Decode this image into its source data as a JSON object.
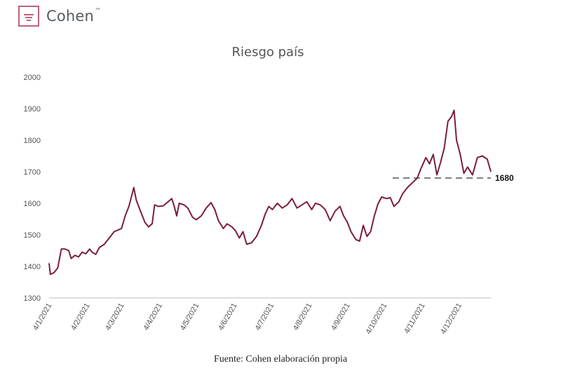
{
  "brand": {
    "name": "Cohen",
    "trademark": "™"
  },
  "colors": {
    "line": "#7b1e3a",
    "reference": "#7f7f7f",
    "axis_text": "#555555",
    "logo": "#c0617a"
  },
  "footer": {
    "source": "Fuente: Cohen elaboración propia"
  },
  "chart_data": {
    "type": "line",
    "title": "Riesgo país",
    "xlabel": "",
    "ylabel": "",
    "ylim": [
      1300,
      2000
    ],
    "yticks": [
      1300,
      1400,
      1500,
      1600,
      1700,
      1800,
      1900,
      2000
    ],
    "xlim": [
      "2021-01-04",
      "2021-12-30"
    ],
    "xticks": [
      {
        "date": "2021-01-04",
        "label": "4/1/2021"
      },
      {
        "date": "2021-02-04",
        "label": "4/2/2021"
      },
      {
        "date": "2021-03-04",
        "label": "4/3/2021"
      },
      {
        "date": "2021-04-04",
        "label": "4/4/2021"
      },
      {
        "date": "2021-05-04",
        "label": "4/5/2021"
      },
      {
        "date": "2021-06-04",
        "label": "4/6/2021"
      },
      {
        "date": "2021-07-04",
        "label": "4/7/2021"
      },
      {
        "date": "2021-08-04",
        "label": "4/8/2021"
      },
      {
        "date": "2021-09-04",
        "label": "4/9/2021"
      },
      {
        "date": "2021-10-04",
        "label": "4/10/2021"
      },
      {
        "date": "2021-11-04",
        "label": "4/11/2021"
      },
      {
        "date": "2021-12-04",
        "label": "4/12/2021"
      }
    ],
    "grid": false,
    "reference_line": {
      "value": 1680,
      "label": "1680",
      "from": "2021-10-11",
      "to": "2021-12-30",
      "style": "dashed"
    },
    "series": [
      {
        "points": [
          [
            "2021-01-04",
            1410
          ],
          [
            "2021-01-05",
            1375
          ],
          [
            "2021-01-08",
            1380
          ],
          [
            "2021-01-11",
            1395
          ],
          [
            "2021-01-14",
            1455
          ],
          [
            "2021-01-17",
            1455
          ],
          [
            "2021-01-20",
            1450
          ],
          [
            "2021-01-22",
            1425
          ],
          [
            "2021-01-25",
            1435
          ],
          [
            "2021-01-28",
            1430
          ],
          [
            "2021-01-31",
            1445
          ],
          [
            "2021-02-03",
            1440
          ],
          [
            "2021-02-06",
            1455
          ],
          [
            "2021-02-08",
            1445
          ],
          [
            "2021-02-11",
            1438
          ],
          [
            "2021-02-14",
            1460
          ],
          [
            "2021-02-18",
            1470
          ],
          [
            "2021-02-22",
            1490
          ],
          [
            "2021-02-26",
            1510
          ],
          [
            "2021-03-01",
            1515
          ],
          [
            "2021-03-04",
            1520
          ],
          [
            "2021-03-07",
            1560
          ],
          [
            "2021-03-10",
            1590
          ],
          [
            "2021-03-12",
            1620
          ],
          [
            "2021-03-14",
            1650
          ],
          [
            "2021-03-16",
            1610
          ],
          [
            "2021-03-19",
            1580
          ],
          [
            "2021-03-23",
            1540
          ],
          [
            "2021-03-26",
            1525
          ],
          [
            "2021-03-29",
            1535
          ],
          [
            "2021-03-31",
            1595
          ],
          [
            "2021-04-03",
            1590
          ],
          [
            "2021-04-07",
            1592
          ],
          [
            "2021-04-11",
            1605
          ],
          [
            "2021-04-14",
            1615
          ],
          [
            "2021-04-16",
            1590
          ],
          [
            "2021-04-18",
            1560
          ],
          [
            "2021-04-20",
            1600
          ],
          [
            "2021-04-24",
            1595
          ],
          [
            "2021-04-27",
            1585
          ],
          [
            "2021-05-01",
            1555
          ],
          [
            "2021-05-04",
            1548
          ],
          [
            "2021-05-08",
            1560
          ],
          [
            "2021-05-12",
            1585
          ],
          [
            "2021-05-16",
            1602
          ],
          [
            "2021-05-19",
            1580
          ],
          [
            "2021-05-22",
            1545
          ],
          [
            "2021-05-26",
            1520
          ],
          [
            "2021-05-29",
            1535
          ],
          [
            "2021-06-02",
            1525
          ],
          [
            "2021-06-05",
            1512
          ],
          [
            "2021-06-08",
            1490
          ],
          [
            "2021-06-11",
            1510
          ],
          [
            "2021-06-14",
            1470
          ],
          [
            "2021-06-18",
            1475
          ],
          [
            "2021-06-22",
            1495
          ],
          [
            "2021-06-26",
            1530
          ],
          [
            "2021-06-29",
            1565
          ],
          [
            "2021-07-02",
            1590
          ],
          [
            "2021-07-05",
            1580
          ],
          [
            "2021-07-09",
            1600
          ],
          [
            "2021-07-13",
            1585
          ],
          [
            "2021-07-17",
            1595
          ],
          [
            "2021-07-21",
            1615
          ],
          [
            "2021-07-25",
            1585
          ],
          [
            "2021-07-29",
            1595
          ],
          [
            "2021-08-02",
            1605
          ],
          [
            "2021-08-06",
            1580
          ],
          [
            "2021-08-09",
            1600
          ],
          [
            "2021-08-13",
            1595
          ],
          [
            "2021-08-17",
            1580
          ],
          [
            "2021-08-21",
            1545
          ],
          [
            "2021-08-25",
            1575
          ],
          [
            "2021-08-29",
            1590
          ],
          [
            "2021-09-01",
            1560
          ],
          [
            "2021-09-04",
            1540
          ],
          [
            "2021-09-07",
            1510
          ],
          [
            "2021-09-11",
            1485
          ],
          [
            "2021-09-14",
            1480
          ],
          [
            "2021-09-17",
            1530
          ],
          [
            "2021-09-20",
            1495
          ],
          [
            "2021-09-23",
            1510
          ],
          [
            "2021-09-26",
            1560
          ],
          [
            "2021-09-29",
            1598
          ],
          [
            "2021-10-02",
            1620
          ],
          [
            "2021-10-06",
            1615
          ],
          [
            "2021-10-09",
            1618
          ],
          [
            "2021-10-12",
            1590
          ],
          [
            "2021-10-16",
            1605
          ],
          [
            "2021-10-19",
            1630
          ],
          [
            "2021-10-23",
            1650
          ],
          [
            "2021-10-27",
            1665
          ],
          [
            "2021-10-31",
            1680
          ],
          [
            "2021-11-03",
            1710
          ],
          [
            "2021-11-07",
            1745
          ],
          [
            "2021-11-10",
            1725
          ],
          [
            "2021-11-13",
            1755
          ],
          [
            "2021-11-16",
            1690
          ],
          [
            "2021-11-19",
            1730
          ],
          [
            "2021-11-22",
            1775
          ],
          [
            "2021-11-25",
            1860
          ],
          [
            "2021-11-28",
            1875
          ],
          [
            "2021-11-30",
            1895
          ],
          [
            "2021-12-02",
            1800
          ],
          [
            "2021-12-05",
            1755
          ],
          [
            "2021-12-08",
            1695
          ],
          [
            "2021-12-11",
            1715
          ],
          [
            "2021-12-15",
            1690
          ],
          [
            "2021-12-19",
            1745
          ],
          [
            "2021-12-23",
            1750
          ],
          [
            "2021-12-27",
            1740
          ],
          [
            "2021-12-30",
            1700
          ]
        ]
      }
    ]
  }
}
